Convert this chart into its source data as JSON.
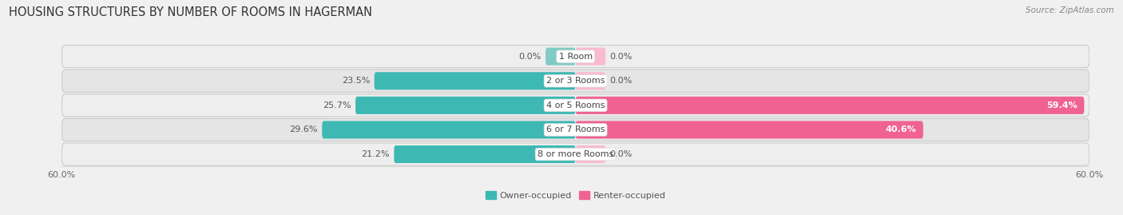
{
  "title": "HOUSING STRUCTURES BY NUMBER OF ROOMS IN HAGERMAN",
  "source": "Source: ZipAtlas.com",
  "categories": [
    "1 Room",
    "2 or 3 Rooms",
    "4 or 5 Rooms",
    "6 or 7 Rooms",
    "8 or more Rooms"
  ],
  "owner_values": [
    0.0,
    23.5,
    25.7,
    29.6,
    21.2
  ],
  "renter_values": [
    0.0,
    0.0,
    59.4,
    40.6,
    0.0
  ],
  "owner_color": "#3db8b3",
  "renter_color": "#f06292",
  "renter_light_color": "#f8bbd0",
  "row_bg_color_odd": "#ececec",
  "row_bg_color_even": "#e4e4e4",
  "axis_limit": 60.0,
  "legend_owner": "Owner-occupied",
  "legend_renter": "Renter-occupied",
  "title_fontsize": 10.5,
  "label_fontsize": 8.0,
  "value_fontsize": 8.0,
  "tick_fontsize": 8.0,
  "source_fontsize": 7.5,
  "small_renter_vals": [
    0.0,
    0.0,
    0.0
  ],
  "small_renter_display": 3.5
}
